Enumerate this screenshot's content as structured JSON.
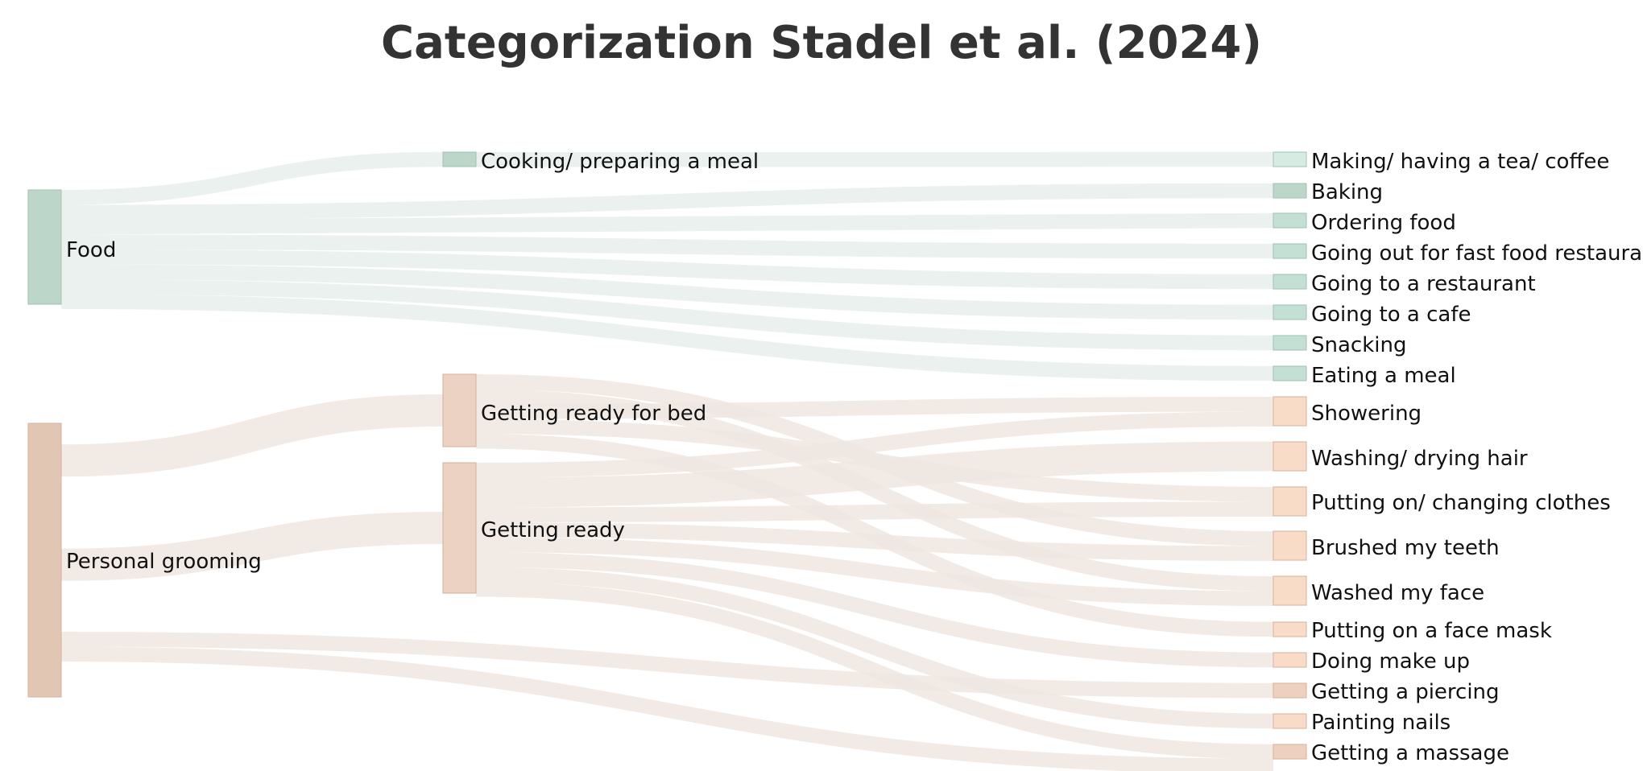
{
  "title": "Categorization Stadel et al. (2024)",
  "colors": {
    "food_node": "#bcd6ca",
    "food_node_stroke": "#9fc2b2",
    "food_leaf": "#c4dfd3",
    "food_leaf_light": "#d5ece2",
    "grooming_node": "#e2c6b4",
    "grooming_node_stroke": "#d6b09a",
    "grooming_mid": "#ecd2c3",
    "grooming_leaf": "#f9dcc8",
    "grooming_leaf_dark": "#edd0bf",
    "food_link": "#e7eeec",
    "grooming_link": "#efe6e0"
  },
  "nodes": {
    "food": "Food",
    "personal_grooming": "Personal grooming",
    "cooking": "Cooking/ preparing a meal",
    "getting_ready_for_bed": "Getting ready for bed",
    "getting_ready": "Getting ready",
    "tea_coffee": "Making/ having a tea/ coffee",
    "baking": "Baking",
    "ordering_food": "Ordering food",
    "fast_food": "Going out for fast food restaurant",
    "restaurant": "Going to a restaurant",
    "cafe": "Going to a cafe",
    "snacking": "Snacking",
    "eating_meal": "Eating a meal",
    "showering": "Showering",
    "washing_hair": "Washing/ drying hair",
    "clothes": "Putting on/ changing clothes",
    "teeth": "Brushed my teeth",
    "face": "Washed my face",
    "face_mask": "Putting on a face mask",
    "make_up": "Doing make up",
    "piercing": "Getting a piercing",
    "nails": "Painting nails",
    "massage": "Getting a massage"
  },
  "links": [
    {
      "source": "food",
      "target": "cooking",
      "value": 1
    },
    {
      "source": "cooking",
      "target": "tea_coffee",
      "value": 1
    },
    {
      "source": "food",
      "target": "baking",
      "value": 1
    },
    {
      "source": "food",
      "target": "ordering_food",
      "value": 1
    },
    {
      "source": "food",
      "target": "fast_food",
      "value": 1
    },
    {
      "source": "food",
      "target": "restaurant",
      "value": 1
    },
    {
      "source": "food",
      "target": "cafe",
      "value": 1
    },
    {
      "source": "food",
      "target": "snacking",
      "value": 1
    },
    {
      "source": "food",
      "target": "eating_meal",
      "value": 1
    },
    {
      "source": "personal_grooming",
      "target": "getting_ready_for_bed",
      "value": 5
    },
    {
      "source": "personal_grooming",
      "target": "getting_ready",
      "value": 9
    },
    {
      "source": "getting_ready_for_bed",
      "target": "teeth",
      "value": 1
    },
    {
      "source": "getting_ready_for_bed",
      "target": "face",
      "value": 1
    },
    {
      "source": "getting_ready_for_bed",
      "target": "showering",
      "value": 1
    },
    {
      "source": "getting_ready_for_bed",
      "target": "clothes",
      "value": 1
    },
    {
      "source": "getting_ready_for_bed",
      "target": "face_mask",
      "value": 1
    },
    {
      "source": "getting_ready",
      "target": "showering",
      "value": 1
    },
    {
      "source": "getting_ready",
      "target": "washing_hair",
      "value": 2
    },
    {
      "source": "getting_ready",
      "target": "clothes",
      "value": 1
    },
    {
      "source": "getting_ready",
      "target": "teeth",
      "value": 1
    },
    {
      "source": "getting_ready",
      "target": "face",
      "value": 1
    },
    {
      "source": "getting_ready",
      "target": "make_up",
      "value": 1
    },
    {
      "source": "getting_ready",
      "target": "nails",
      "value": 1
    },
    {
      "source": "getting_ready",
      "target": "massage",
      "value": 1
    },
    {
      "source": "personal_grooming",
      "target": "piercing",
      "value": 1
    },
    {
      "source": "personal_grooming",
      "target": "massage",
      "value": 1
    }
  ]
}
